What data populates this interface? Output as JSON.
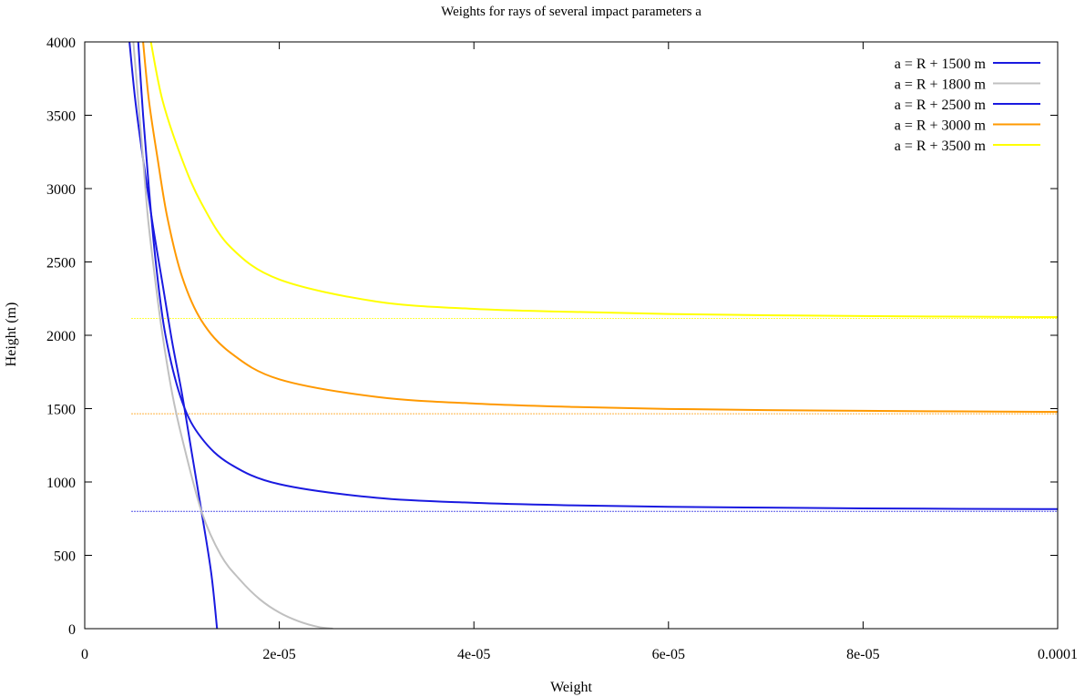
{
  "chart_data": {
    "type": "line",
    "title": "Weights for rays of several impact parameters a",
    "xlabel": "Weight",
    "ylabel": "Height (m)",
    "xlim": [
      0,
      0.0001
    ],
    "ylim": [
      0,
      4000
    ],
    "x_ticks": [
      {
        "value": 0,
        "label": "0"
      },
      {
        "value": 2e-05,
        "label": "2e-05"
      },
      {
        "value": 4e-05,
        "label": "4e-05"
      },
      {
        "value": 6e-05,
        "label": "6e-05"
      },
      {
        "value": 8e-05,
        "label": "8e-05"
      },
      {
        "value": 0.0001,
        "label": "0.0001"
      }
    ],
    "y_ticks": [
      {
        "value": 0,
        "label": "0"
      },
      {
        "value": 500,
        "label": "500"
      },
      {
        "value": 1000,
        "label": "1000"
      },
      {
        "value": 1500,
        "label": "1500"
      },
      {
        "value": 2000,
        "label": "2000"
      },
      {
        "value": 2500,
        "label": "2500"
      },
      {
        "value": 3000,
        "label": "3000"
      },
      {
        "value": 3500,
        "label": "3500"
      },
      {
        "value": 4000,
        "label": "4000"
      }
    ],
    "grid": false,
    "legend_position": "top-right",
    "series": [
      {
        "name": "a = R + 1500 m",
        "color": "#1a1ae0",
        "points": [
          [
            4.6e-06,
            4000
          ],
          [
            5.2e-06,
            3600
          ],
          [
            6e-06,
            3200
          ],
          [
            7e-06,
            2750
          ],
          [
            8e-06,
            2350
          ],
          [
            9e-06,
            1950
          ],
          [
            1e-05,
            1600
          ],
          [
            1.1e-05,
            1200
          ],
          [
            1.2e-05,
            800
          ],
          [
            1.3e-05,
            380
          ],
          [
            1.36e-05,
            0
          ]
        ]
      },
      {
        "name": "a = R + 1800 m",
        "color": "#c0c0c0",
        "points": [
          [
            5e-06,
            4000
          ],
          [
            5.5e-06,
            3600
          ],
          [
            6e-06,
            3200
          ],
          [
            6.5e-06,
            2800
          ],
          [
            7.2e-06,
            2400
          ],
          [
            8e-06,
            2000
          ],
          [
            9e-06,
            1600
          ],
          [
            1e-05,
            1300
          ],
          [
            1.2e-05,
            800
          ],
          [
            1.4e-05,
            500
          ],
          [
            1.6e-05,
            330
          ],
          [
            1.8e-05,
            200
          ],
          [
            2e-05,
            110
          ],
          [
            2.2e-05,
            50
          ],
          [
            2.4e-05,
            12
          ],
          [
            2.55e-05,
            0
          ]
        ]
      },
      {
        "name": "a = R + 2500 m",
        "color": "#1a1ae0",
        "asymptote": 800,
        "points": [
          [
            5.5e-06,
            4000
          ],
          [
            6e-06,
            3500
          ],
          [
            6.6e-06,
            3000
          ],
          [
            7.3e-06,
            2500
          ],
          [
            8.3e-06,
            2000
          ],
          [
            1e-05,
            1550
          ],
          [
            1.2e-05,
            1300
          ],
          [
            1.5e-05,
            1120
          ],
          [
            2e-05,
            985
          ],
          [
            3e-05,
            892
          ],
          [
            4e-05,
            858
          ],
          [
            5e-05,
            841
          ],
          [
            6e-05,
            831
          ],
          [
            7e-05,
            825
          ],
          [
            8e-05,
            820
          ],
          [
            9e-05,
            817
          ],
          [
            0.0001,
            815
          ]
        ]
      },
      {
        "name": "a = R + 3000 m",
        "color": "#ff9900",
        "asymptote": 1465,
        "points": [
          [
            6e-06,
            4000
          ],
          [
            6.6e-06,
            3600
          ],
          [
            7.5e-06,
            3200
          ],
          [
            8.5e-06,
            2800
          ],
          [
            1e-05,
            2400
          ],
          [
            1.2e-05,
            2100
          ],
          [
            1.5e-05,
            1880
          ],
          [
            2e-05,
            1700
          ],
          [
            3e-05,
            1580
          ],
          [
            4e-05,
            1535
          ],
          [
            5e-05,
            1512
          ],
          [
            6e-05,
            1498
          ],
          [
            7e-05,
            1490
          ],
          [
            8e-05,
            1485
          ],
          [
            9e-05,
            1481
          ],
          [
            0.0001,
            1478
          ]
        ]
      },
      {
        "name": "a = R + 3500 m",
        "color": "#ffff00",
        "asymptote": 2115,
        "points": [
          [
            6.8e-06,
            4000
          ],
          [
            8e-06,
            3600
          ],
          [
            1e-05,
            3200
          ],
          [
            1.2e-05,
            2900
          ],
          [
            1.5e-05,
            2600
          ],
          [
            2e-05,
            2380
          ],
          [
            3e-05,
            2230
          ],
          [
            4e-05,
            2180
          ],
          [
            5e-05,
            2160
          ],
          [
            6e-05,
            2145
          ],
          [
            7e-05,
            2137
          ],
          [
            8e-05,
            2131
          ],
          [
            9e-05,
            2127
          ],
          [
            0.0001,
            2124
          ]
        ]
      }
    ]
  }
}
